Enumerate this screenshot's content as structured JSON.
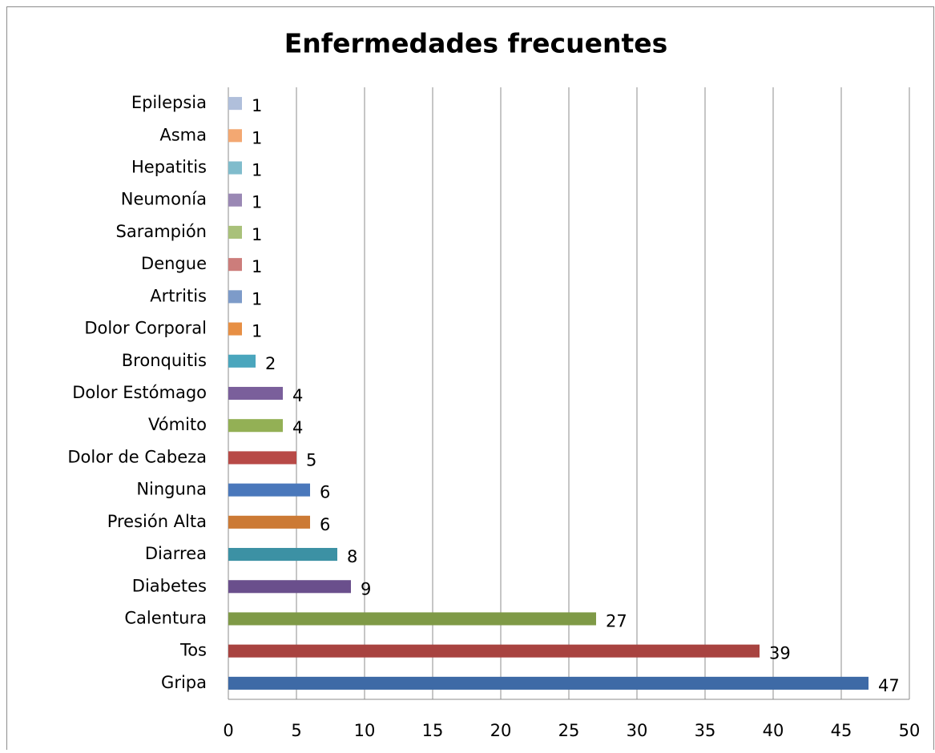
{
  "chart_data": {
    "type": "bar",
    "orientation": "horizontal",
    "title": "Enfermedades frecuentes",
    "categories": [
      "Gripa",
      "Tos",
      "Calentura",
      "Diabetes",
      "Diarrea",
      "Presión Alta",
      "Ninguna",
      "Dolor de Cabeza",
      "Vómito",
      "Dolor Estómago",
      "Bronquitis",
      "Dolor Corporal",
      "Artritis",
      "Dengue",
      "Sarampión",
      "Neumonía",
      "Hepatitis",
      "Asma",
      "Epilepsia"
    ],
    "values": [
      47,
      39,
      27,
      9,
      8,
      6,
      6,
      5,
      4,
      4,
      2,
      1,
      1,
      1,
      1,
      1,
      1,
      1,
      1
    ],
    "colors": [
      "#3e6aa6",
      "#a84340",
      "#7f9a47",
      "#6a4f8c",
      "#3c91a4",
      "#cc7a35",
      "#4a78bb",
      "#b84a47",
      "#93b055",
      "#7a5f9b",
      "#4aa6bd",
      "#e78f44",
      "#7d9bc9",
      "#cc7d7b",
      "#a9c17a",
      "#9a88b4",
      "#80bccc",
      "#f3a872",
      "#b0bfdb"
    ],
    "xlim": [
      0,
      50
    ],
    "xticks": [
      0,
      5,
      10,
      15,
      20,
      25,
      30,
      35,
      40,
      45,
      50
    ],
    "grid": true
  }
}
